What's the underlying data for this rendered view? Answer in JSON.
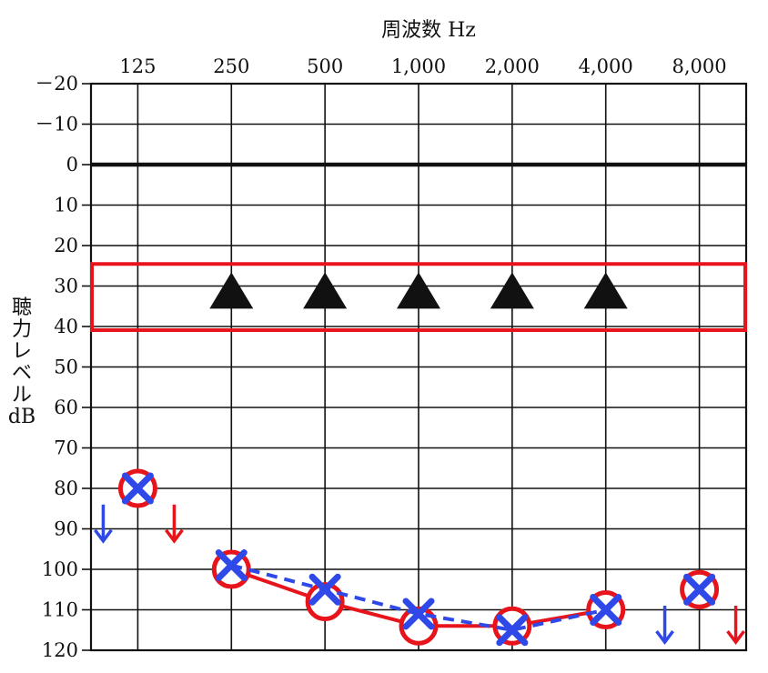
{
  "chart_data": {
    "type": "scatter",
    "title": "周波数 Hz",
    "ylabel_lines": [
      "聴",
      "力",
      "レ",
      "ベ",
      "ル",
      "dB"
    ],
    "x_categories": [
      "125",
      "250",
      "500",
      "1,000",
      "2,000",
      "4,000",
      "8,000"
    ],
    "y_ticks": [
      "－20",
      "－10",
      "0",
      "10",
      "20",
      "30",
      "40",
      "50",
      "60",
      "70",
      "80",
      "90",
      "100",
      "110",
      "120"
    ],
    "ylim": [
      -20,
      120
    ],
    "y_inverted": true,
    "grid": true,
    "reference_line_db": 0,
    "highlight_band": {
      "from_db": 25,
      "to_db": 40,
      "color": "#e8141b"
    },
    "series": [
      {
        "marker": "circle",
        "color": "#e8141b",
        "line_style": "solid",
        "points": [
          {
            "x": "125",
            "y": 80,
            "connected": false
          },
          {
            "x": "250",
            "y": 100,
            "connected": true
          },
          {
            "x": "500",
            "y": 108,
            "connected": true
          },
          {
            "x": "1,000",
            "y": 114,
            "connected": true
          },
          {
            "x": "2,000",
            "y": 114,
            "connected": true
          },
          {
            "x": "4,000",
            "y": 110,
            "connected": true
          },
          {
            "x": "8,000",
            "y": 105,
            "connected": false
          }
        ]
      },
      {
        "marker": "cross",
        "color": "#2f48e8",
        "line_style": "dashed",
        "points": [
          {
            "x": "125",
            "y": 80,
            "connected": false
          },
          {
            "x": "250",
            "y": 99,
            "connected": true
          },
          {
            "x": "500",
            "y": 105,
            "connected": true
          },
          {
            "x": "1,000",
            "y": 111,
            "connected": true
          },
          {
            "x": "2,000",
            "y": 115,
            "connected": true
          },
          {
            "x": "4,000",
            "y": 110,
            "connected": true
          },
          {
            "x": "8,000",
            "y": 105,
            "connected": false
          }
        ]
      },
      {
        "marker": "triangle",
        "color": "#111111",
        "line_style": "none",
        "points": [
          {
            "x": "250",
            "y": 32
          },
          {
            "x": "500",
            "y": 32
          },
          {
            "x": "1,000",
            "y": 32
          },
          {
            "x": "2,000",
            "y": 32
          },
          {
            "x": "4,000",
            "y": 32
          }
        ]
      }
    ],
    "scale_out_arrows": [
      {
        "x": "125",
        "side": "left",
        "color": "#2f48e8",
        "from_db": 84,
        "to_db": 93
      },
      {
        "x": "125",
        "side": "right",
        "color": "#e8141b",
        "from_db": 84,
        "to_db": 93
      },
      {
        "x": "8,000",
        "side": "left",
        "color": "#2f48e8",
        "from_db": 109,
        "to_db": 118
      },
      {
        "x": "8,000",
        "side": "right",
        "color": "#e8141b",
        "from_db": 109,
        "to_db": 118
      }
    ]
  }
}
